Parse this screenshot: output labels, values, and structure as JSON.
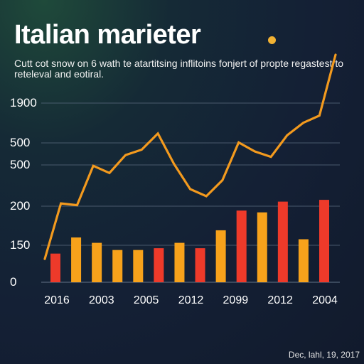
{
  "header": {
    "title": "Italian marieter",
    "subtitle": "Cutt cot snow on 6 wath te atartitsing inflitoins fonjert of propte regastest to reteleval and eotiral.",
    "accent_dot_color": "#f2b233"
  },
  "footer": {
    "date": "Dec, lahl, 19, 2017"
  },
  "colors": {
    "line": "#f39a1e",
    "bar_orange": "#f7a21b",
    "bar_red": "#ee3a2a",
    "grid": "#56667a"
  },
  "chart_data": {
    "type": "bar",
    "title": "Italian marieter",
    "subtitle": "Cutt cot snow on 6 wath te atartitsing inflitoins fonjert of propte regastest to reteleval and eotiral.",
    "y_tick_labels": [
      "1900",
      "500",
      "500",
      "200",
      "150",
      "0"
    ],
    "x_tick_labels": [
      "2016",
      "2003",
      "2005",
      "2012",
      "2099",
      "2012",
      "2004"
    ],
    "grid": true,
    "legend": "none",
    "bars": {
      "values": [
        0.16,
        0.25,
        0.22,
        0.18,
        0.18,
        0.19,
        0.22,
        0.19,
        0.29,
        0.4,
        0.39,
        0.45,
        0.24,
        0.46
      ],
      "colors": [
        "red",
        "orange",
        "orange",
        "orange",
        "orange",
        "red",
        "orange",
        "red",
        "orange",
        "red",
        "orange",
        "red",
        "orange",
        "red"
      ]
    },
    "series": [
      {
        "type": "line",
        "values": [
          0.13,
          0.44,
          0.43,
          0.65,
          0.61,
          0.71,
          0.74,
          0.83,
          0.66,
          0.52,
          0.48,
          0.57,
          0.78,
          0.73,
          0.7,
          0.82,
          0.89,
          0.93,
          1.27
        ]
      }
    ]
  }
}
